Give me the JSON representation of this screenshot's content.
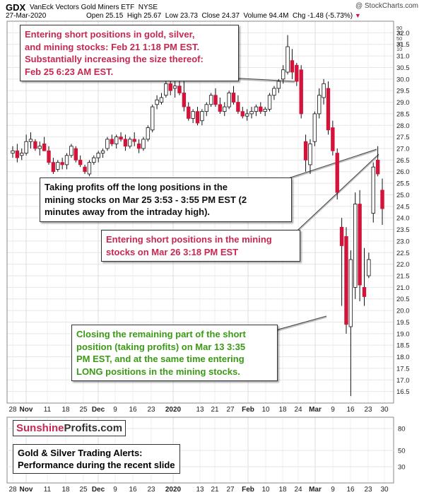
{
  "header": {
    "symbol": "GDX",
    "name": "VanEck Vectors Gold Miners ETF",
    "exchange": "NYSE",
    "date": "27-Mar-2020",
    "open_label": "Open",
    "open": "25.15",
    "high_label": "High",
    "high": "25.67",
    "low_label": "Low",
    "low": "23.73",
    "close_label": "Close",
    "close": "24.37",
    "volume_label": "Volume",
    "volume": "94.4M",
    "chg_label": "Chg",
    "chg": "-1.48 (-5.73%)",
    "credit": "@ StockCharts.com"
  },
  "annotations": {
    "a1": [
      "Entering short positions in gold, silver,",
      "and mining stocks: Feb 21 1:18 PM EST.",
      "Substantially increasing the size thereof:",
      "Feb 25 6:23 AM EST."
    ],
    "a2": [
      "Taking profits off the long positions in the",
      "mining stocks on Mar 25 3:53 - 3:55 PM EST (2",
      "minutes away from the intraday high)."
    ],
    "a3": [
      "Entering short positions in the mining",
      "stocks on Mar 26 3:18 PM EST"
    ],
    "a4": [
      "Closing the remaining part of the short",
      "position (taking profits) on Mar 13 3:35",
      "PM EST, and at the same time entering",
      "LONG positions in the mining stocks."
    ]
  },
  "logo": {
    "part1": "Sunshine",
    "part2": "Profits.com"
  },
  "perf": [
    "Gold & Silver Trading Alerts:",
    "Performance during the recent slide"
  ],
  "chart_data": {
    "type": "candlestick",
    "ylim": [
      16.0,
      32.5
    ],
    "yticks": [
      16.5,
      17.0,
      17.5,
      18.0,
      18.5,
      19.0,
      19.5,
      20.0,
      20.5,
      21.0,
      21.5,
      22.0,
      22.5,
      23.0,
      23.5,
      24.0,
      24.5,
      25.0,
      25.5,
      26.0,
      26.5,
      27.0,
      27.5,
      28.0,
      28.5,
      29.0,
      29.5,
      30.0,
      30.5,
      31.0,
      31.5,
      32.0
    ],
    "ytick_labels": [
      "16.5",
      "17.0",
      "17.5",
      "18.0",
      "18.5",
      "19.0",
      "19.5",
      "20.0",
      "20.5",
      "21.0",
      "21.5",
      "22.0",
      "22.5",
      "23.0",
      "23.5",
      "24.0",
      "24.5",
      "25.0",
      "25.5",
      "26.0",
      "26.5",
      "27.0",
      "27.5",
      "28.0",
      "28.5",
      "29.0",
      "29.5",
      "30.0",
      "30.5",
      "31.0",
      "31.5",
      "32.0"
    ],
    "top_scale_labels": [
      "90",
      "70",
      "50",
      "30",
      "10"
    ],
    "lower_panel_labels": [
      "80",
      "50",
      "30"
    ],
    "xtick_labels": [
      "28",
      "Nov",
      "11",
      "18",
      "25",
      "Dec",
      "9",
      "16",
      "23",
      "2020",
      "13",
      "21",
      "27",
      "Feb",
      "10",
      "18",
      "24",
      "Mar",
      "9",
      "16",
      "23",
      "30"
    ],
    "bold_xticks": [
      "Nov",
      "Dec",
      "2020",
      "Feb",
      "Mar"
    ],
    "candles": [
      [
        26.8,
        27.1,
        26.6,
        26.9
      ],
      [
        26.9,
        27.2,
        26.4,
        26.6
      ],
      [
        26.7,
        27.0,
        26.5,
        26.8
      ],
      [
        26.8,
        27.6,
        26.7,
        27.3
      ],
      [
        27.3,
        27.7,
        27.0,
        27.4
      ],
      [
        27.3,
        27.4,
        26.9,
        27.0
      ],
      [
        27.0,
        27.3,
        26.7,
        27.1
      ],
      [
        27.2,
        27.5,
        26.9,
        26.9
      ],
      [
        26.9,
        27.1,
        26.3,
        26.4
      ],
      [
        26.4,
        26.6,
        25.9,
        26.0
      ],
      [
        26.1,
        26.5,
        26.0,
        26.4
      ],
      [
        26.4,
        26.6,
        26.1,
        26.3
      ],
      [
        26.3,
        26.8,
        26.1,
        26.7
      ],
      [
        26.7,
        27.2,
        26.6,
        27.1
      ],
      [
        27.0,
        27.1,
        26.4,
        26.5
      ],
      [
        26.5,
        26.7,
        26.2,
        26.3
      ],
      [
        26.2,
        26.3,
        25.9,
        26.0
      ],
      [
        25.9,
        26.5,
        25.8,
        26.4
      ],
      [
        26.4,
        26.7,
        26.3,
        26.6
      ],
      [
        26.6,
        26.9,
        26.4,
        26.8
      ],
      [
        26.8,
        27.0,
        26.6,
        26.9
      ],
      [
        27.0,
        27.5,
        26.9,
        27.4
      ],
      [
        27.4,
        27.6,
        27.1,
        27.2
      ],
      [
        27.2,
        27.6,
        27.0,
        27.5
      ],
      [
        27.5,
        27.7,
        27.3,
        27.4
      ],
      [
        27.4,
        27.6,
        26.9,
        27.1
      ],
      [
        27.1,
        27.5,
        27.0,
        27.4
      ],
      [
        27.4,
        27.7,
        27.1,
        27.3
      ],
      [
        27.2,
        27.4,
        26.8,
        27.0
      ],
      [
        27.0,
        27.5,
        26.9,
        27.4
      ],
      [
        27.4,
        28.0,
        27.3,
        27.9
      ],
      [
        27.8,
        28.9,
        27.7,
        28.8
      ],
      [
        28.9,
        29.3,
        28.7,
        29.1
      ],
      [
        29.0,
        29.4,
        28.9,
        29.2
      ],
      [
        29.3,
        29.9,
        29.2,
        29.8
      ],
      [
        29.8,
        30.0,
        29.3,
        29.5
      ],
      [
        29.6,
        29.9,
        29.2,
        29.7
      ],
      [
        29.7,
        29.9,
        29.3,
        29.4
      ],
      [
        29.4,
        29.9,
        28.6,
        28.8
      ],
      [
        28.8,
        29.0,
        28.2,
        28.3
      ],
      [
        28.3,
        28.7,
        28.1,
        28.6
      ],
      [
        28.6,
        28.8,
        28.0,
        28.1
      ],
      [
        28.2,
        28.7,
        28.0,
        28.6
      ],
      [
        28.6,
        29.0,
        28.4,
        28.9
      ],
      [
        28.9,
        29.4,
        28.8,
        29.3
      ],
      [
        29.3,
        29.6,
        28.8,
        28.9
      ],
      [
        28.9,
        29.2,
        28.5,
        28.6
      ],
      [
        28.6,
        29.0,
        28.4,
        28.8
      ],
      [
        28.8,
        29.5,
        28.7,
        29.4
      ],
      [
        29.4,
        29.7,
        28.9,
        29.0
      ],
      [
        29.0,
        29.3,
        28.5,
        28.6
      ],
      [
        28.6,
        28.8,
        28.3,
        28.4
      ],
      [
        28.4,
        28.7,
        28.2,
        28.5
      ],
      [
        28.5,
        28.8,
        28.3,
        28.6
      ],
      [
        28.6,
        28.9,
        28.4,
        28.8
      ],
      [
        28.8,
        29.0,
        28.5,
        28.6
      ],
      [
        28.6,
        28.8,
        28.4,
        28.7
      ],
      [
        28.7,
        29.4,
        28.6,
        29.3
      ],
      [
        29.3,
        29.7,
        29.1,
        29.6
      ],
      [
        29.6,
        30.0,
        29.4,
        29.9
      ],
      [
        30.0,
        30.6,
        29.8,
        30.4
      ],
      [
        30.3,
        31.9,
        30.2,
        31.4
      ],
      [
        30.8,
        31.3,
        30.0,
        30.3
      ],
      [
        30.6,
        30.7,
        29.7,
        29.9
      ],
      [
        30.4,
        30.6,
        28.3,
        28.5
      ],
      [
        27.3,
        27.6,
        26.0,
        26.5
      ],
      [
        26.3,
        27.4,
        25.9,
        27.2
      ],
      [
        27.3,
        28.6,
        27.1,
        28.5
      ],
      [
        28.5,
        29.6,
        28.3,
        29.3
      ],
      [
        29.2,
        30.0,
        28.9,
        29.8
      ],
      [
        29.6,
        29.9,
        27.6,
        27.8
      ],
      [
        27.9,
        28.2,
        26.7,
        26.9
      ],
      [
        26.8,
        27.0,
        24.8,
        25.1
      ],
      [
        23.6,
        24.0,
        20.2,
        22.8
      ],
      [
        23.2,
        23.6,
        19.0,
        19.4
      ],
      [
        19.3,
        22.6,
        16.3,
        22.2
      ],
      [
        21.0,
        25.1,
        20.5,
        24.6
      ],
      [
        24.6,
        25.2,
        20.4,
        21.1
      ],
      [
        21.0,
        22.7,
        20.2,
        20.6
      ],
      [
        21.5,
        22.5,
        21.4,
        22.2
      ],
      [
        24.2,
        26.4,
        23.8,
        26.2
      ],
      [
        26.5,
        27.1,
        25.8,
        25.9
      ],
      [
        25.2,
        25.7,
        23.7,
        24.4
      ]
    ]
  }
}
